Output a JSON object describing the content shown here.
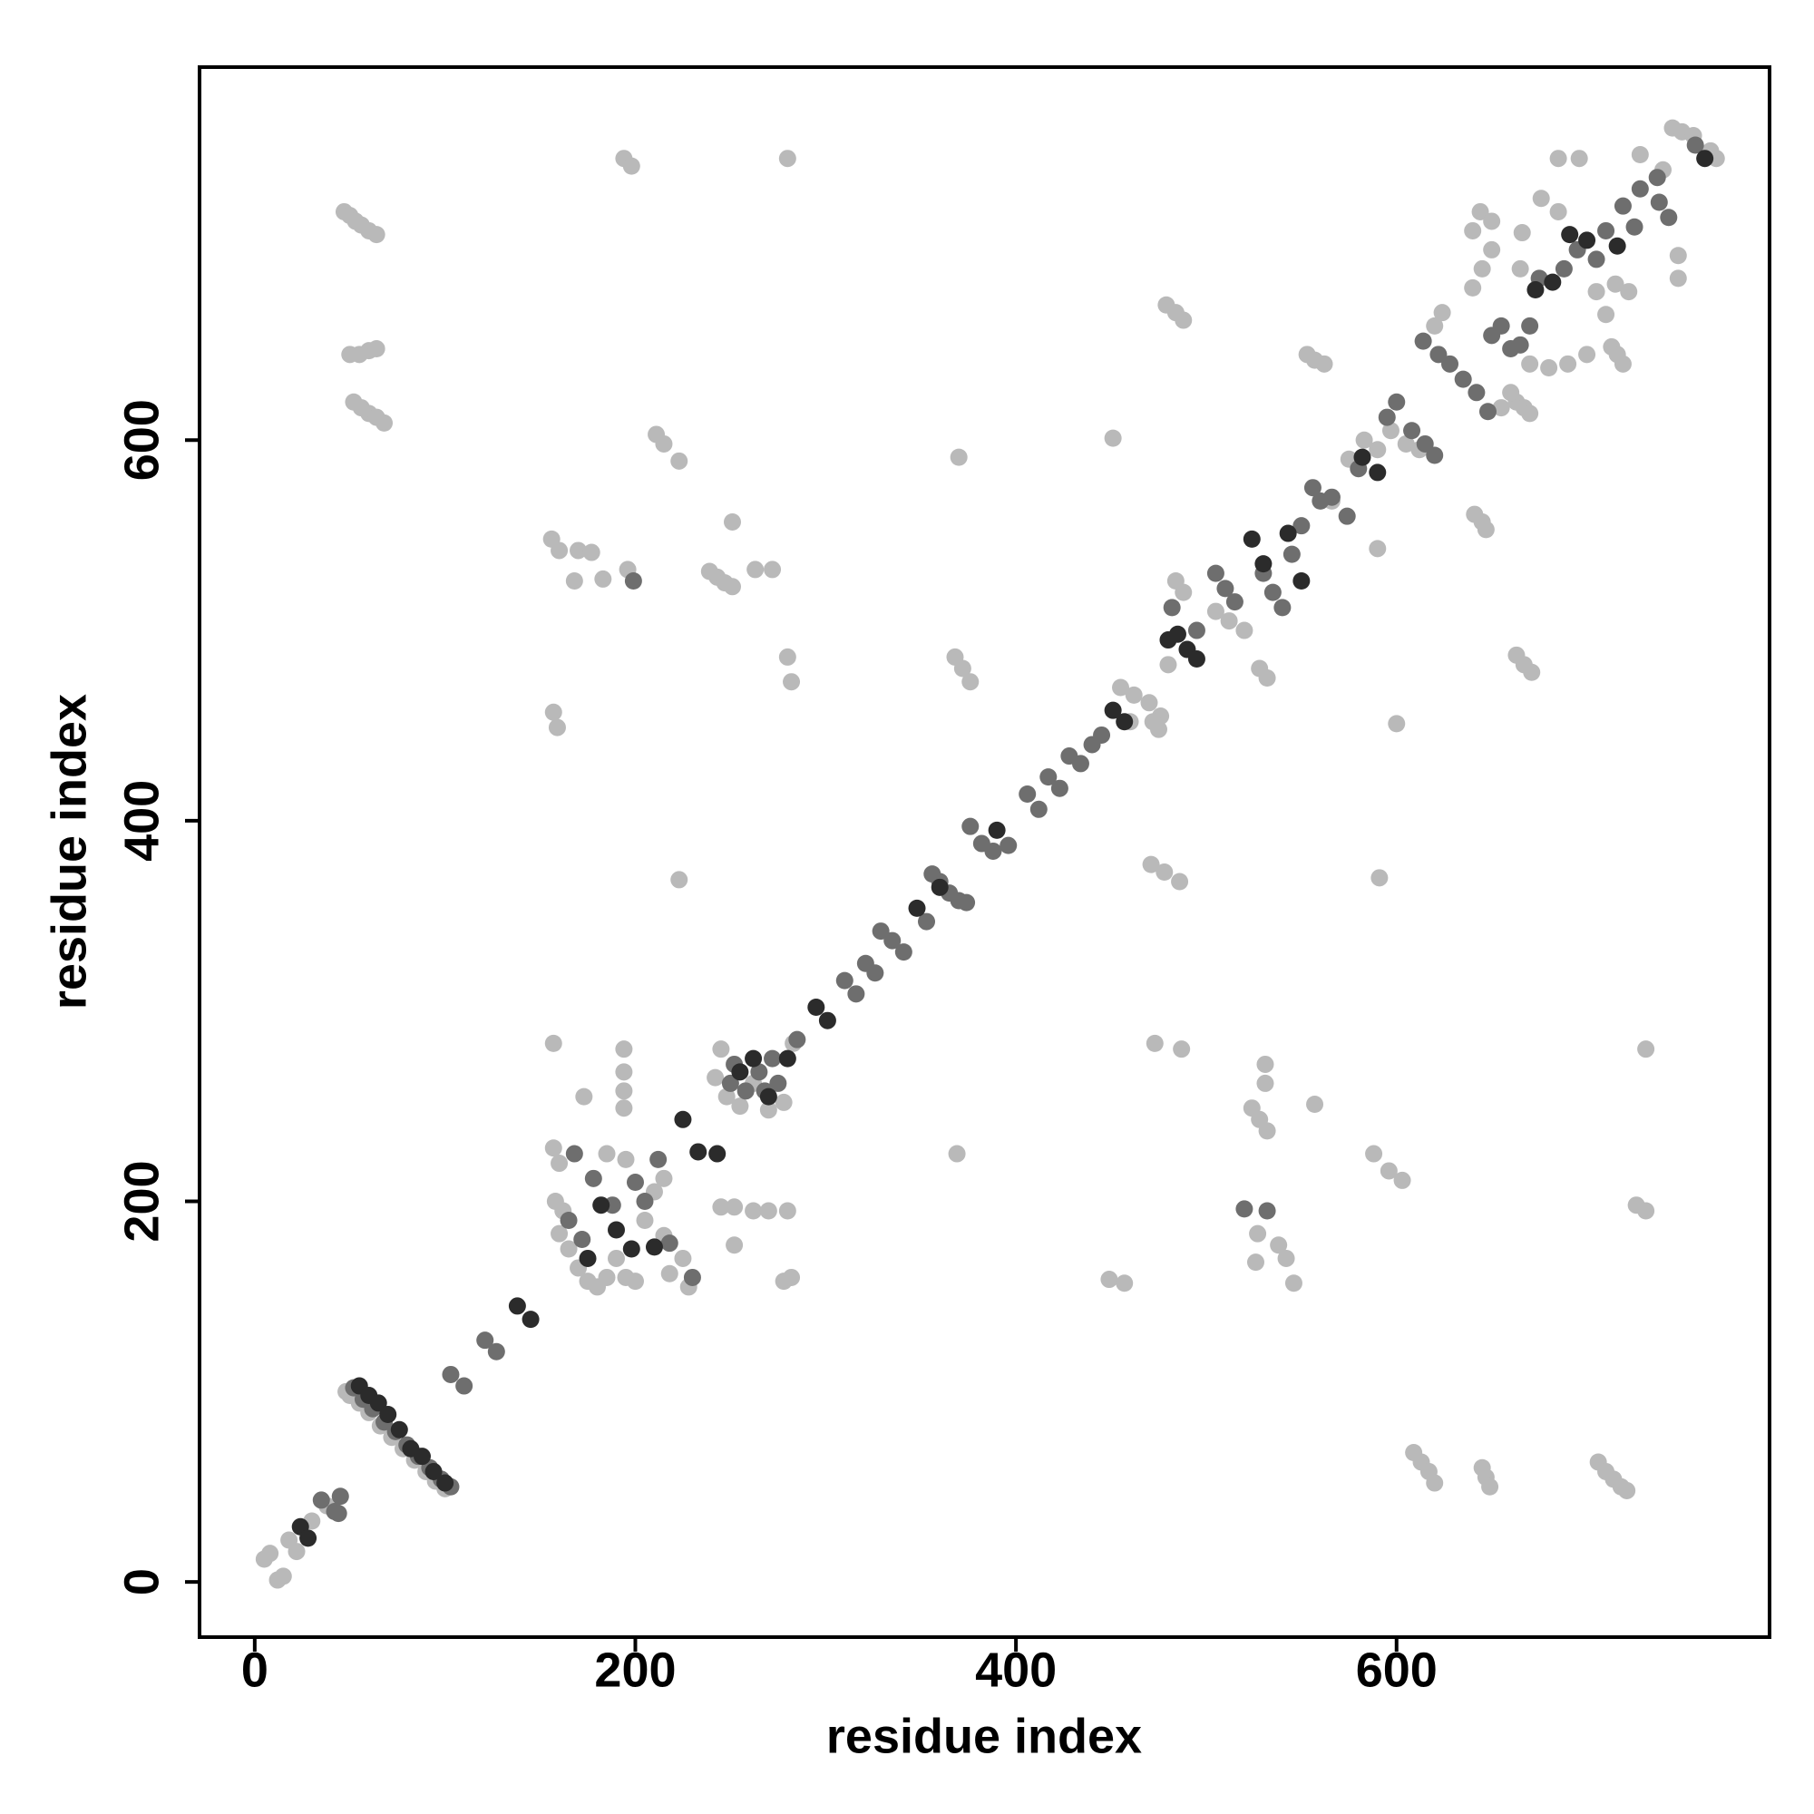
{
  "chart_data": {
    "type": "scatter",
    "xlabel": "residue index",
    "ylabel": "residue index",
    "xlim": [
      -29,
      796
    ],
    "ylim": [
      -29,
      796
    ],
    "xticks": [
      0,
      200,
      400,
      600
    ],
    "yticks": [
      0,
      200,
      400,
      600
    ],
    "series": [
      {
        "color": "#b9b9b9",
        "x": [
          5,
          8,
          12,
          15,
          18,
          22,
          30,
          38,
          48,
          50,
          55,
          60,
          66,
          72,
          78,
          84,
          90,
          95,
          100,
          157,
          160,
          158,
          162,
          165,
          170,
          175,
          180,
          185,
          190,
          195,
          200,
          185,
          195,
          205,
          210,
          215,
          218,
          225,
          228,
          160,
          173,
          194,
          194,
          194,
          194,
          157,
          215,
          245,
          252,
          262,
          270,
          280,
          252,
          282,
          278,
          242,
          248,
          255,
          262,
          270,
          278,
          283,
          245,
          47,
          50,
          53,
          56,
          60,
          64,
          50,
          55,
          60,
          64,
          52,
          56,
          60,
          64,
          68,
          194,
          198,
          280,
          211,
          215,
          223,
          156,
          160,
          170,
          177,
          168,
          183,
          196,
          239,
          243,
          247,
          251,
          251,
          263,
          272,
          280,
          282,
          157,
          159,
          223,
          370,
          368,
          372,
          376,
          369,
          451,
          479,
          484,
          488,
          553,
          557,
          562,
          471,
          478,
          486,
          473,
          487,
          531,
          531,
          524,
          528,
          532,
          557,
          527,
          526,
          538,
          542,
          546,
          449,
          457,
          590,
          591,
          600,
          588,
          596,
          603,
          609,
          613,
          617,
          620,
          645,
          647,
          649,
          706,
          710,
          714,
          718,
          721,
          641,
          645,
          647,
          663,
          667,
          671,
          726,
          731,
          731,
          748,
          748,
          710,
          713,
          716,
          719,
          663,
          667,
          670,
          685,
          696,
          666,
          455,
          462,
          470,
          476,
          472,
          480,
          484,
          488,
          505,
          512,
          520,
          528,
          532,
          566,
          575,
          583,
          590,
          597,
          605,
          612,
          620,
          624,
          640,
          645,
          650,
          644,
          650,
          665,
          670,
          680,
          690,
          700,
          676,
          685,
          705,
          715,
          722,
          745,
          750,
          756,
          765,
          768,
          740,
          728,
          655,
          660,
          640,
          460,
          475
        ],
        "values": [
          12,
          15,
          1,
          3,
          22,
          16,
          32,
          40,
          100,
          98,
          94,
          89,
          82,
          76,
          70,
          64,
          58,
          53,
          49,
          228,
          220,
          200,
          195,
          175,
          165,
          158,
          155,
          160,
          170,
          160,
          158,
          225,
          222,
          190,
          205,
          182,
          162,
          170,
          155,
          183,
          255,
          280,
          268,
          258,
          249,
          283,
          212,
          197,
          197,
          195,
          195,
          195,
          177,
          160,
          158,
          265,
          255,
          250,
          262,
          248,
          252,
          283,
          280,
          720,
          718,
          715,
          713,
          710,
          708,
          645,
          645,
          647,
          648,
          620,
          617,
          614,
          612,
          609,
          748,
          744,
          748,
          603,
          598,
          589,
          548,
          542,
          542,
          541,
          526,
          527,
          532,
          531,
          528,
          525,
          523,
          557,
          532,
          532,
          486,
          473,
          457,
          449,
          369,
          591,
          486,
          480,
          473,
          225,
          601,
          671,
          667,
          663,
          645,
          642,
          640,
          377,
          373,
          368,
          283,
          280,
          272,
          262,
          249,
          243,
          237,
          251,
          183,
          168,
          177,
          170,
          157,
          159,
          157,
          543,
          370,
          451,
          225,
          216,
          211,
          68,
          63,
          58,
          52,
          60,
          55,
          50,
          63,
          58,
          54,
          50,
          48,
          561,
          557,
          553,
          487,
          482,
          478,
          198,
          195,
          280,
          697,
          685,
          666,
          649,
          645,
          640,
          620,
          617,
          614,
          748,
          748,
          709,
          470,
          466,
          462,
          455,
          452,
          482,
          526,
          520,
          510,
          505,
          500,
          480,
          475,
          568,
          590,
          600,
          595,
          605,
          598,
          595,
          660,
          667,
          680,
          690,
          700,
          720,
          715,
          690,
          640,
          638,
          640,
          645,
          727,
          720,
          678,
          682,
          678,
          764,
          762,
          760,
          752,
          748,
          742,
          750,
          617,
          625,
          710,
          452,
          448
        ]
      },
      {
        "color": "#6e6e6e",
        "x": [
          35,
          42,
          45,
          44,
          52,
          57,
          62,
          68,
          74,
          80,
          86,
          92,
          98,
          103,
          103,
          110,
          121,
          127,
          165,
          172,
          178,
          188,
          200,
          205,
          212,
          218,
          168,
          230,
          252,
          258,
          265,
          272,
          268,
          275,
          285,
          250,
          199,
          310,
          316,
          321,
          326,
          329,
          335,
          341,
          353,
          356,
          360,
          365,
          370,
          374,
          376,
          382,
          388,
          396,
          406,
          412,
          417,
          423,
          428,
          434,
          440,
          445,
          482,
          495,
          505,
          510,
          515,
          530,
          535,
          540,
          545,
          550,
          556,
          560,
          566,
          574,
          580,
          595,
          600,
          608,
          615,
          620,
          614,
          622,
          628,
          635,
          642,
          648,
          650,
          655,
          660,
          665,
          670,
          675,
          688,
          695,
          705,
          710,
          719,
          728,
          737,
          743,
          725,
          738,
          757,
          520,
          532
        ],
        "values": [
          43,
          37,
          45,
          36,
          102,
          96,
          91,
          84,
          79,
          72,
          66,
          60,
          54,
          50,
          109,
          103,
          127,
          121,
          190,
          180,
          212,
          198,
          210,
          200,
          222,
          178,
          225,
          160,
          272,
          258,
          268,
          275,
          258,
          262,
          285,
          262,
          526,
          316,
          309,
          325,
          320,
          342,
          337,
          331,
          347,
          372,
          368,
          362,
          358,
          357,
          397,
          388,
          384,
          387,
          414,
          406,
          423,
          417,
          434,
          430,
          440,
          445,
          512,
          500,
          530,
          522,
          515,
          530,
          520,
          512,
          540,
          555,
          575,
          568,
          570,
          560,
          585,
          612,
          620,
          605,
          598,
          592,
          652,
          645,
          640,
          632,
          625,
          615,
          655,
          660,
          648,
          650,
          660,
          685,
          690,
          700,
          695,
          710,
          723,
          732,
          738,
          717,
          712,
          725,
          755,
          196,
          195
        ]
      },
      {
        "color": "#2b2b2b",
        "x": [
          24,
          28,
          55,
          60,
          65,
          70,
          76,
          82,
          88,
          94,
          100,
          138,
          145,
          175,
          182,
          190,
          198,
          210,
          225,
          233,
          243,
          255,
          262,
          270,
          280,
          295,
          301,
          348,
          360,
          390,
          451,
          457,
          480,
          485,
          490,
          495,
          524,
          530,
          543,
          550,
          582,
          590,
          673,
          682,
          691,
          700,
          716,
          762
        ],
        "values": [
          29,
          23,
          103,
          98,
          94,
          88,
          80,
          70,
          66,
          58,
          52,
          145,
          138,
          170,
          198,
          185,
          175,
          176,
          243,
          226,
          225,
          268,
          275,
          255,
          275,
          302,
          295,
          354,
          365,
          395,
          458,
          452,
          495,
          498,
          490,
          485,
          548,
          535,
          551,
          526,
          591,
          583,
          679,
          683,
          708,
          705,
          702,
          748
        ]
      }
    ]
  }
}
